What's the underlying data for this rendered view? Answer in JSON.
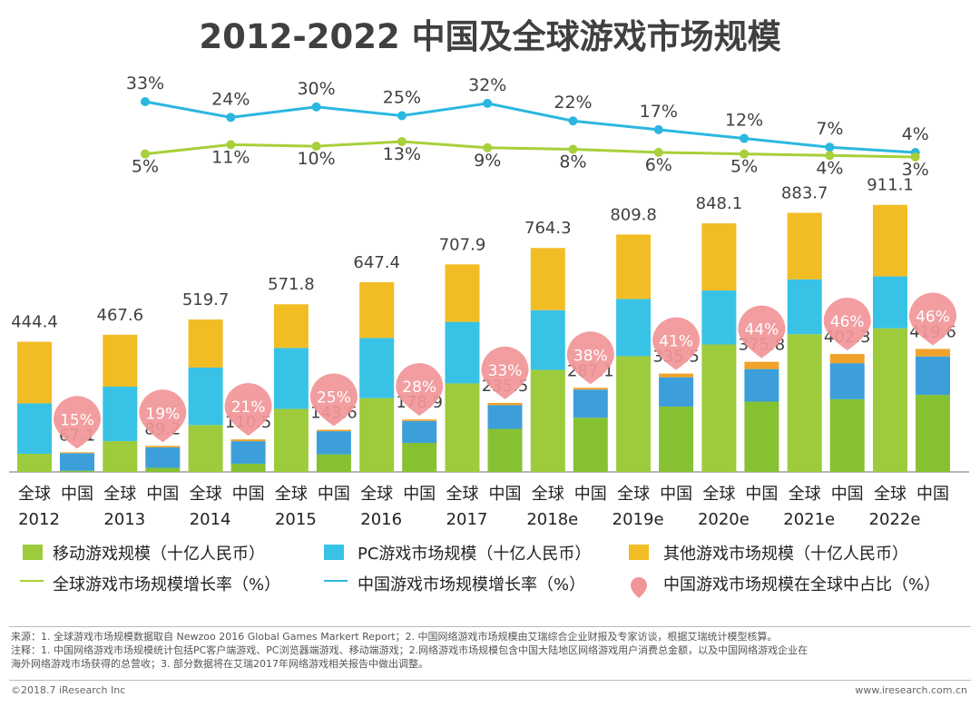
{
  "page": {
    "title": "2012-2022 中国及全球游戏市场规模",
    "colors": {
      "mobile": "#9DCB3B",
      "pc": "#38C3E6",
      "other": "#F2BC25",
      "china_mobile": "#86C132",
      "china_pc": "#3D9FD9",
      "china_other": "#F0A22A",
      "global_growth_line": "#A7D03A",
      "china_growth_line": "#2BB7E0",
      "share_pin": "#F19598",
      "text": "#404040"
    }
  },
  "chart_data": {
    "type": "bar",
    "stacked": true,
    "title": "2012-2022 中国及全球游戏市场规模",
    "categories": [
      "2012",
      "2013",
      "2014",
      "2015",
      "2016",
      "2017",
      "2018e",
      "2019e",
      "2020e",
      "2021e",
      "2022e"
    ],
    "bar_labels": {
      "global": "全球",
      "china": "中国"
    },
    "global_totals": [
      "444.4",
      "467.6",
      "519.7",
      "571.8",
      "647.4",
      "707.9",
      "764.3",
      "809.8",
      "848.1",
      "883.7",
      "911.1"
    ],
    "china_totals": [
      "67.1",
      "89.2",
      "110.5",
      "143.6",
      "178.9",
      "235.5",
      "287.1",
      "335.5",
      "375.8",
      "402.3",
      "419.6"
    ],
    "global_segments": {
      "mobile": [
        62,
        105,
        160,
        215,
        252,
        302,
        348,
        395,
        435,
        470,
        490
      ],
      "pc": [
        172,
        186,
        196,
        208,
        205,
        210,
        204,
        195,
        184,
        187,
        177
      ],
      "other": [
        210,
        177,
        164,
        149,
        190,
        196,
        212,
        220,
        229,
        227,
        244
      ]
    },
    "china_segments": {
      "mobile": [
        4,
        14,
        28,
        60,
        99,
        147,
        185,
        223,
        240,
        248,
        263
      ],
      "pc": [
        60,
        70,
        77,
        79,
        75,
        81,
        96,
        100,
        111,
        123,
        131
      ],
      "other": [
        3,
        5,
        6,
        5,
        5,
        7.5,
        6,
        12.5,
        24.8,
        31.3,
        25.6
      ]
    },
    "global_growth_labels": [
      "5%",
      "11%",
      "10%",
      "13%",
      "9%",
      "8%",
      "6%",
      "5%",
      "4%",
      "3%"
    ],
    "global_growth_values": [
      5,
      11,
      10,
      13,
      9,
      8,
      6,
      5,
      4,
      3
    ],
    "china_growth_labels": [
      "33%",
      "24%",
      "30%",
      "25%",
      "32%",
      "22%",
      "17%",
      "12%",
      "7%",
      "4%"
    ],
    "china_growth_values": [
      33,
      24,
      30,
      25,
      32,
      22,
      17,
      12,
      7,
      4
    ],
    "china_share_labels": [
      "15%",
      "19%",
      "21%",
      "25%",
      "28%",
      "33%",
      "38%",
      "41%",
      "44%",
      "46%",
      "46%"
    ],
    "legend": {
      "mobile": "移动游戏规模（十亿人民币）",
      "pc": "PC游戏市场规模（十亿人民币）",
      "other": "其他游戏市场规模（十亿人民币）",
      "global_growth": "全球游戏市场规模增长率（%）",
      "china_growth": "中国游戏市场规模增长率（%）",
      "china_share": "中国游戏市场规模在全球中占比（%）"
    }
  },
  "notes": {
    "source": "来源：1. 全球游戏市场规模数据取自 Newzoo 2016 Global Games Markert Report；2. 中国网络游戏市场规模由艾瑞综合企业财报及专家访谈，根据艾瑞统计模型核算。",
    "note_1": "注释：1. 中国网络游戏市场规模统计包括PC客户端游戏、PC浏览器端游戏、移动端游戏；2.网络游戏市场规模包含中国大陆地区网络游戏用户消费总金额，以及中国网络游戏企业在",
    "note_2": "海外网络游戏市场获得的总营收；3. 部分数据将在艾瑞2017年网络游戏相关报告中做出调整。"
  },
  "footer": {
    "copyright": "©2018.7 iResearch Inc",
    "website": "www.iresearch.com.cn"
  }
}
